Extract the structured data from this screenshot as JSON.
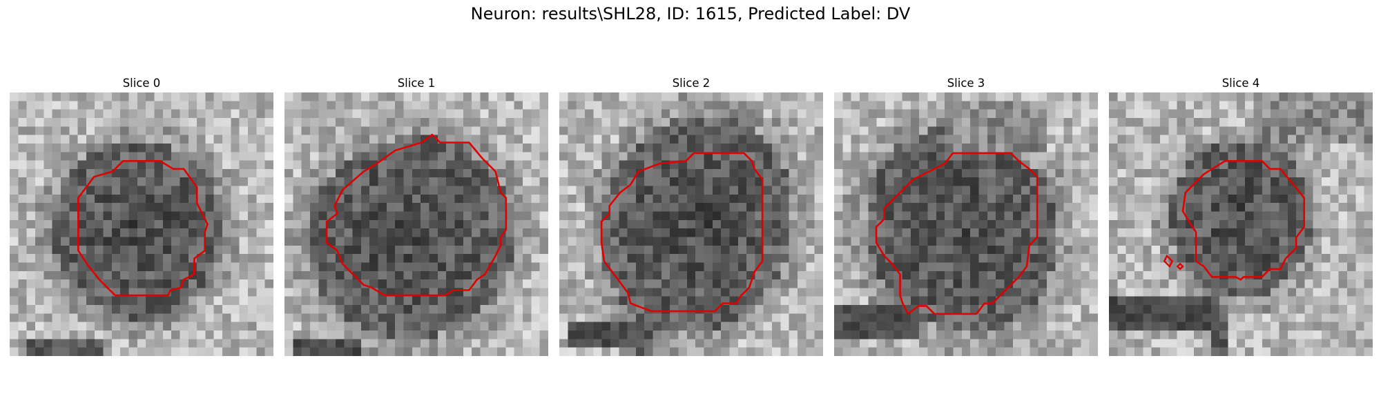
{
  "figure": {
    "title": "Neuron: results\\SHL28, ID: 1615, Predicted Label: DV",
    "contour_color": "#e00000"
  },
  "panels": [
    {
      "title": "Slice 0"
    },
    {
      "title": "Slice 1"
    },
    {
      "title": "Slice 2"
    },
    {
      "title": "Slice 3"
    },
    {
      "title": "Slice 4"
    }
  ]
}
